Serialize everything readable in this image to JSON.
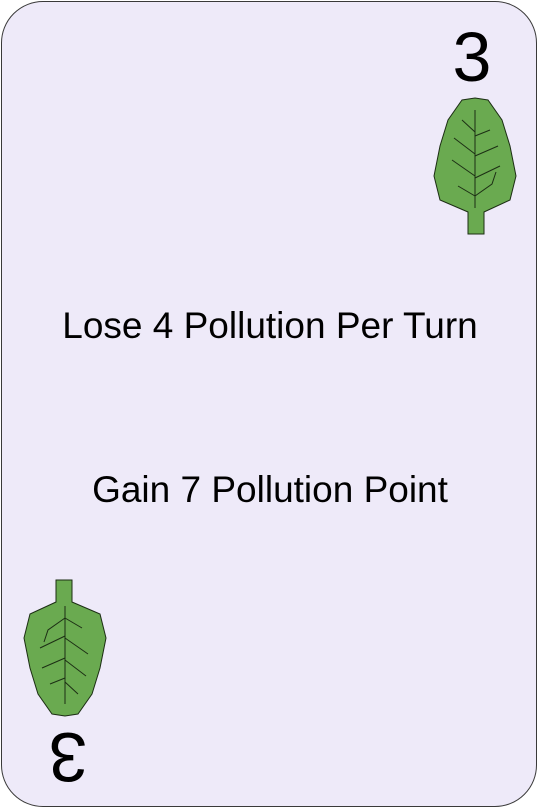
{
  "card": {
    "rank": "3",
    "suit_icon": "leaf-icon",
    "effects": [
      "Lose 4 Pollution Per Turn",
      "Gain 7 Pollution Point"
    ]
  },
  "colors": {
    "card_background": "#eeeaf9",
    "leaf_fill": "#6aaa50",
    "leaf_veins": "#1c2e14"
  }
}
